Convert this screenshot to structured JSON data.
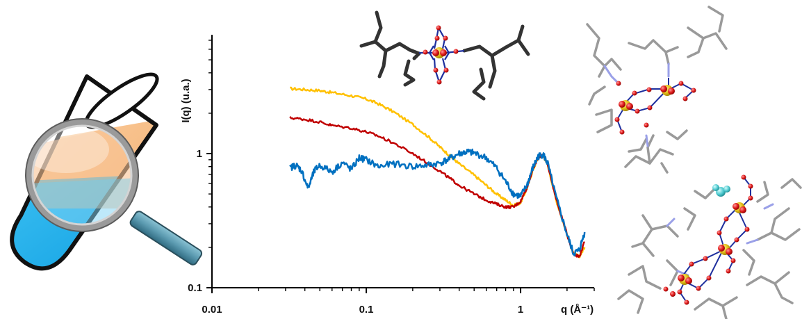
{
  "chart_data": {
    "type": "line",
    "x_scale": "log",
    "y_scale": "log",
    "xlim": [
      0.01,
      3
    ],
    "ylim": [
      0.1,
      10
    ],
    "x_ticks": [
      "0.01",
      "0.1",
      "1"
    ],
    "y_ticks": [
      "0.1",
      "1"
    ],
    "xlabel": "q (Å⁻¹)",
    "ylabel": "I(q) (u.a.)",
    "grid": false,
    "series": [
      {
        "color": "#FFC000",
        "x": [
          0.032,
          0.04,
          0.05,
          0.06,
          0.08,
          0.1,
          0.12,
          0.15,
          0.2,
          0.25,
          0.3,
          0.35,
          0.4,
          0.5,
          0.6,
          0.7,
          0.8,
          0.9,
          1.0,
          1.1,
          1.2,
          1.3,
          1.4,
          1.5,
          1.7,
          2.0,
          2.2,
          2.4,
          2.6
        ],
        "y": [
          3.05,
          3.0,
          2.95,
          2.85,
          2.7,
          2.55,
          2.35,
          2.05,
          1.65,
          1.35,
          1.12,
          0.96,
          0.84,
          0.69,
          0.58,
          0.5,
          0.45,
          0.41,
          0.43,
          0.55,
          0.75,
          0.93,
          0.97,
          0.82,
          0.45,
          0.25,
          0.18,
          0.17,
          0.2
        ]
      },
      {
        "color": "#C00000",
        "x": [
          0.032,
          0.04,
          0.05,
          0.06,
          0.08,
          0.1,
          0.12,
          0.15,
          0.2,
          0.25,
          0.3,
          0.35,
          0.4,
          0.5,
          0.6,
          0.7,
          0.8,
          0.9,
          1.0,
          1.1,
          1.2,
          1.3,
          1.4,
          1.5,
          1.7,
          2.0,
          2.2,
          2.4,
          2.6
        ],
        "y": [
          1.85,
          1.8,
          1.72,
          1.62,
          1.55,
          1.45,
          1.35,
          1.2,
          1.0,
          0.85,
          0.74,
          0.65,
          0.58,
          0.5,
          0.45,
          0.42,
          0.4,
          0.4,
          0.44,
          0.56,
          0.76,
          0.94,
          0.98,
          0.83,
          0.46,
          0.25,
          0.18,
          0.17,
          0.22
        ]
      },
      {
        "color": "#0070C0",
        "x": [
          0.032,
          0.035,
          0.038,
          0.042,
          0.046,
          0.05,
          0.06,
          0.07,
          0.08,
          0.09,
          0.1,
          0.12,
          0.15,
          0.2,
          0.25,
          0.3,
          0.35,
          0.4,
          0.45,
          0.5,
          0.6,
          0.7,
          0.8,
          0.9,
          1.0,
          1.1,
          1.2,
          1.3,
          1.4,
          1.5,
          1.7,
          2.0,
          2.2,
          2.4,
          2.6
        ],
        "y": [
          0.78,
          0.82,
          0.75,
          0.55,
          0.74,
          0.82,
          0.73,
          0.86,
          0.76,
          0.93,
          0.9,
          0.8,
          0.84,
          0.8,
          0.82,
          0.85,
          0.92,
          1.0,
          1.03,
          1.01,
          0.93,
          0.78,
          0.62,
          0.5,
          0.48,
          0.58,
          0.78,
          0.95,
          0.99,
          0.84,
          0.47,
          0.25,
          0.18,
          0.19,
          0.26
        ]
      }
    ]
  }
}
